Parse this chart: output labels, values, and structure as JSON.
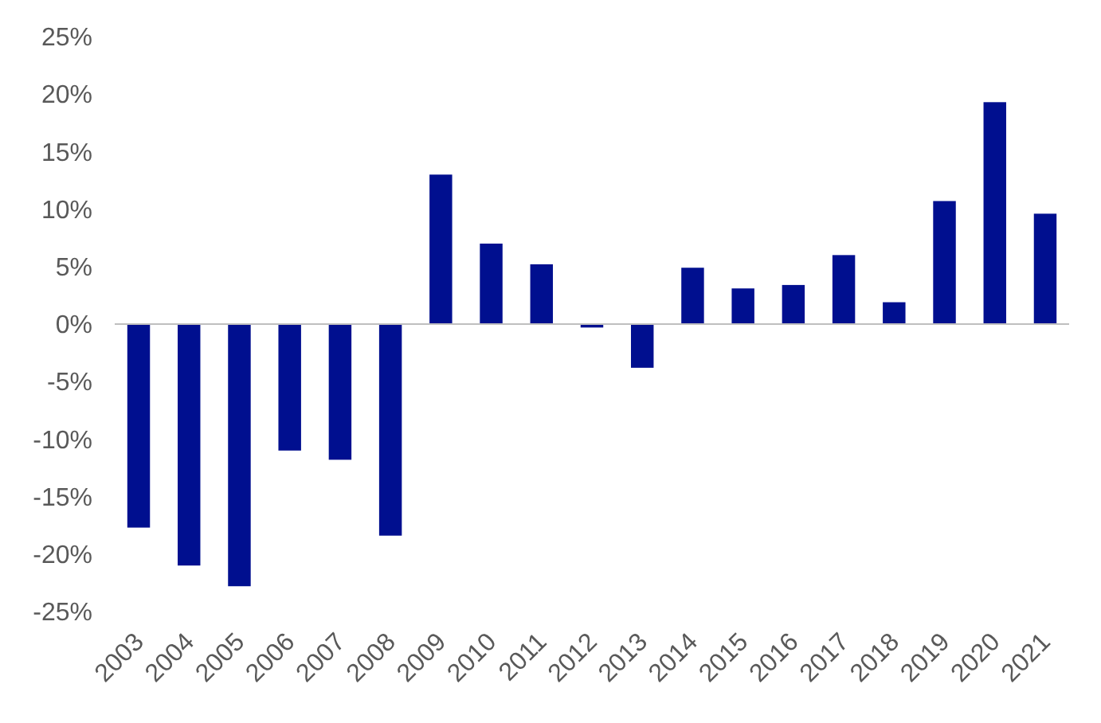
{
  "chart_data": {
    "type": "bar",
    "categories": [
      "2003",
      "2004",
      "2005",
      "2006",
      "2007",
      "2008",
      "2009",
      "2010",
      "2011",
      "2012",
      "2013",
      "2014",
      "2015",
      "2016",
      "2017",
      "2018",
      "2019",
      "2020",
      "2021"
    ],
    "values": [
      -17.7,
      -21.0,
      -22.8,
      -11.0,
      -11.8,
      -18.4,
      13.0,
      7.0,
      5.2,
      -0.3,
      -3.8,
      4.9,
      3.1,
      3.4,
      6.0,
      1.9,
      10.7,
      19.3,
      9.6
    ],
    "color": "#000f8f",
    "ylim": [
      -25,
      25
    ],
    "yticks": [
      {
        "value": -25,
        "label": "-25%"
      },
      {
        "value": -20,
        "label": "-20%"
      },
      {
        "value": -15,
        "label": "-15%"
      },
      {
        "value": -10,
        "label": "-10%"
      },
      {
        "value": -5,
        "label": "-5%"
      },
      {
        "value": 0,
        "label": "0%"
      },
      {
        "value": 5,
        "label": "5%"
      },
      {
        "value": 10,
        "label": "10%"
      },
      {
        "value": 15,
        "label": "15%"
      },
      {
        "value": 20,
        "label": "20%"
      },
      {
        "value": 25,
        "label": "25%"
      }
    ],
    "legend": false
  }
}
